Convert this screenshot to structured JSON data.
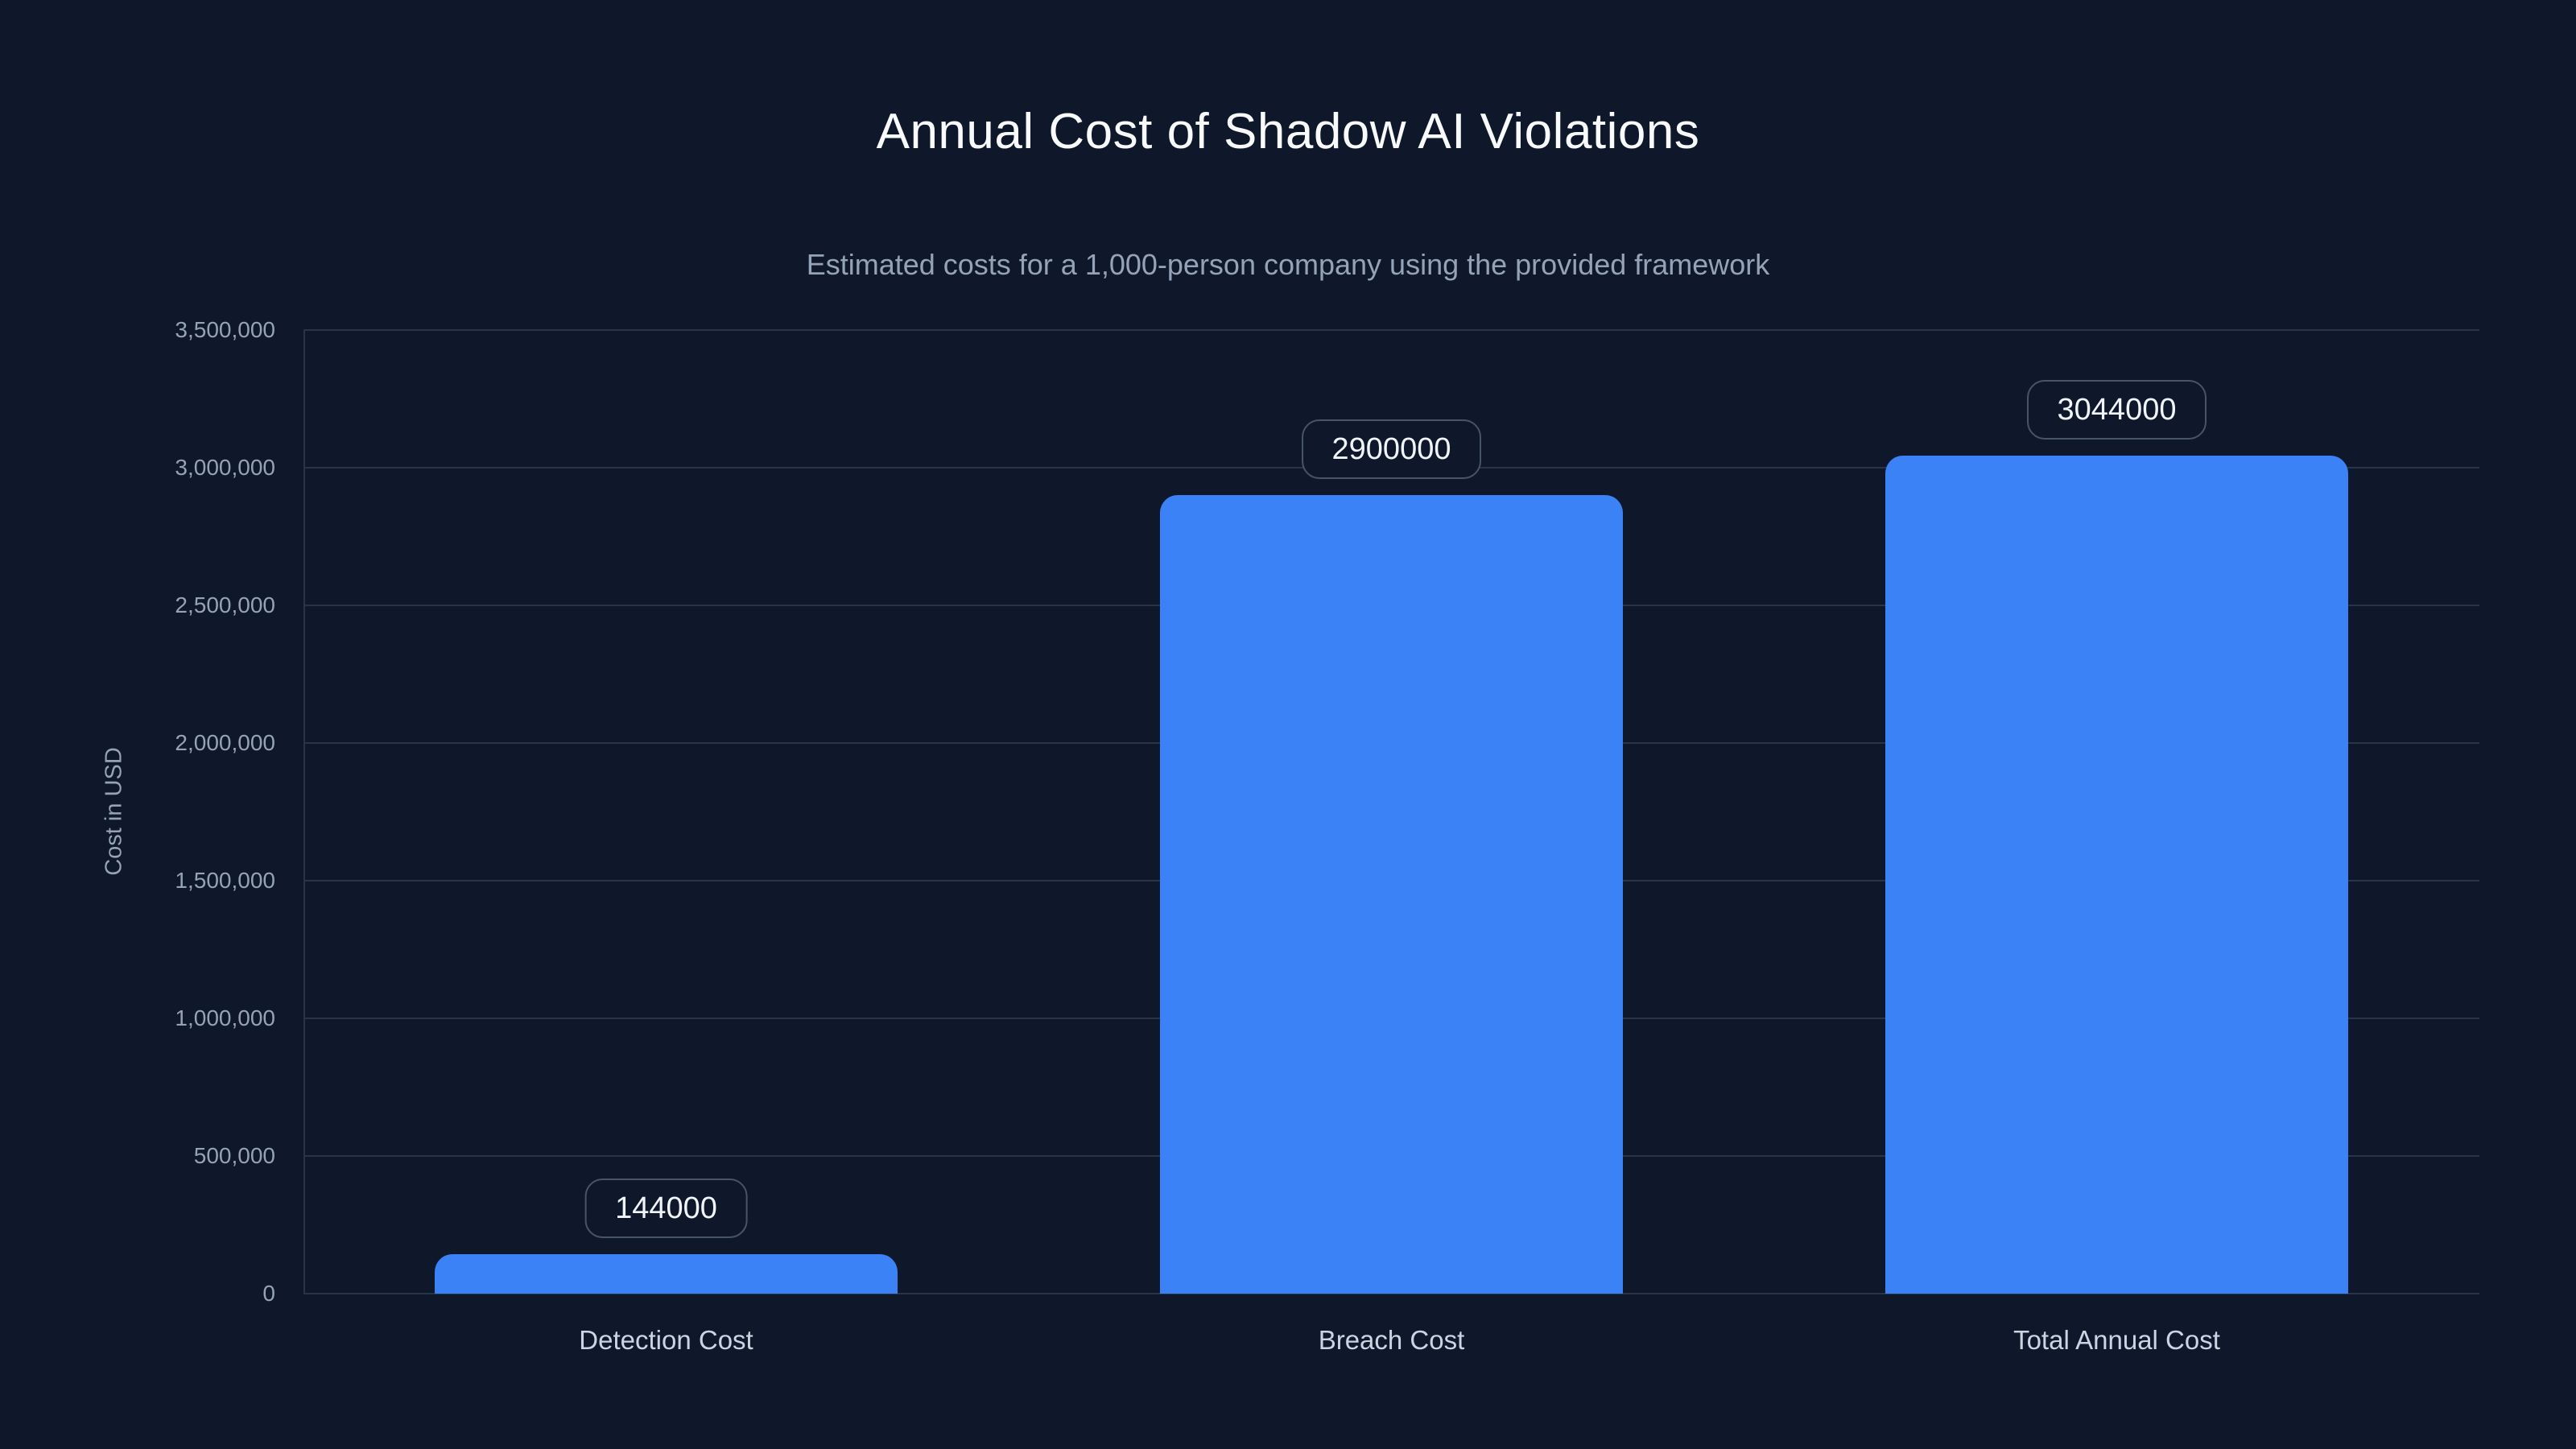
{
  "chart_data": {
    "type": "bar",
    "title": "Annual Cost of Shadow AI Violations",
    "subtitle": "Estimated costs for a 1,000-person company using the provided framework",
    "ylabel": "Cost in USD",
    "xlabel": "",
    "categories": [
      "Detection Cost",
      "Breach Cost",
      "Total Annual Cost"
    ],
    "values": [
      144000,
      2900000,
      3044000
    ],
    "bar_value_labels": [
      "144000",
      "2900000",
      "3044000"
    ],
    "ylim": [
      0,
      3500000
    ],
    "ytick_interval": 500000,
    "ytick_labels": [
      "0",
      "500,000",
      "1,000,000",
      "1,500,000",
      "2,000,000",
      "2,500,000",
      "3,000,000",
      "3,500,000"
    ],
    "grid": true,
    "legend": false,
    "colors": {
      "background": "#0f172a",
      "bar": "#3b82f6",
      "title_text": "#f8fafc",
      "subtitle_text": "#94a3b8",
      "tick_text": "#94a3b8",
      "category_text": "#cbd5e1",
      "gridline": "#273449",
      "axis_line": "#273449",
      "badge_border": "#475569",
      "badge_text": "#f1f5f9"
    }
  }
}
